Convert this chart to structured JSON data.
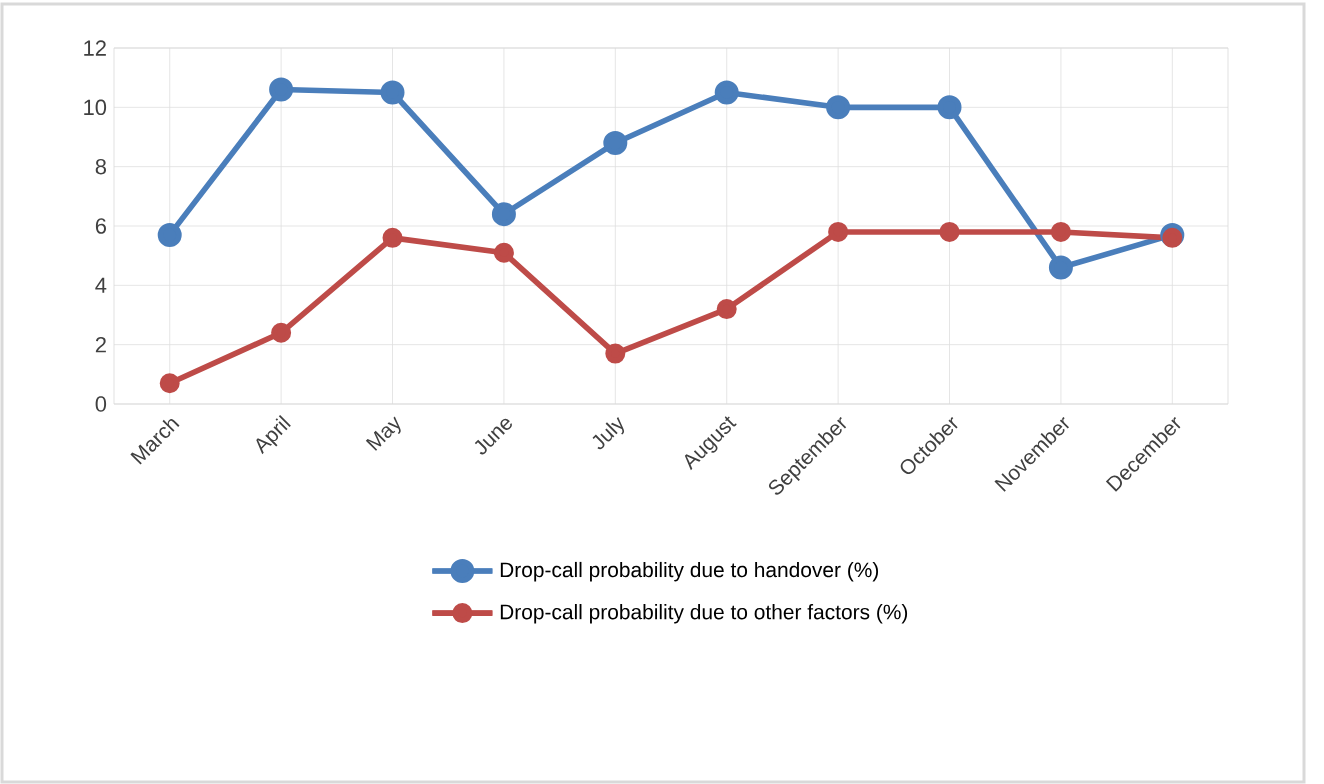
{
  "chart_data": {
    "type": "line",
    "categories": [
      "March",
      "April",
      "May",
      "June",
      "July",
      "August",
      "September",
      "October",
      "November",
      "December"
    ],
    "series": [
      {
        "name": "Drop-call probability due to handover (%)",
        "color": "#4a7ebb",
        "values": [
          5.7,
          10.6,
          10.5,
          6.4,
          8.8,
          10.5,
          10.0,
          10.0,
          4.6,
          5.7
        ]
      },
      {
        "name": "Drop-call probability due to other factors (%)",
        "color": "#be4b48",
        "values": [
          0.7,
          2.4,
          5.6,
          5.1,
          1.7,
          3.2,
          5.8,
          5.8,
          5.8,
          5.6
        ]
      }
    ],
    "ylim": [
      0,
      12
    ],
    "yticks": [
      0,
      2,
      4,
      6,
      8,
      10,
      12
    ],
    "grid": true,
    "legend": "bottom",
    "marker": "circle",
    "line_style": "solid"
  }
}
